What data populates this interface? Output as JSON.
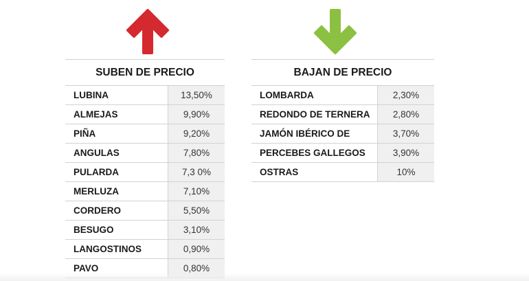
{
  "colors": {
    "up_arrow": "#d42a2f",
    "down_arrow": "#8cc043"
  },
  "icons": {
    "up": "arrow-up-icon",
    "down": "arrow-down-icon"
  },
  "rising": {
    "title": "SUBEN DE PRECIO",
    "rows": [
      {
        "name": "LUBINA",
        "value": "13,50%"
      },
      {
        "name": "ALMEJAS",
        "value": "9,90%"
      },
      {
        "name": "PIÑA",
        "value": "9,20%"
      },
      {
        "name": "ANGULAS",
        "value": "7,80%"
      },
      {
        "name": "PULARDA",
        "value": "7,3 0%"
      },
      {
        "name": "MERLUZA",
        "value": "7,10%"
      },
      {
        "name": "CORDERO",
        "value": "5,50%"
      },
      {
        "name": "BESUGO",
        "value": "3,10%"
      },
      {
        "name": "LANGOSTINOS",
        "value": "0,90%"
      },
      {
        "name": "PAVO",
        "value": "0,80%"
      }
    ]
  },
  "falling": {
    "title": "BAJAN DE PRECIO",
    "rows": [
      {
        "name": "LOMBARDA",
        "value": "2,30%"
      },
      {
        "name": "REDONDO DE TERNERA",
        "value": "2,80%"
      },
      {
        "name": "JAMÓN IBÉRICO DE",
        "value": "3,70%"
      },
      {
        "name": "PERCEBES GALLEGOS",
        "value": "3,90%"
      },
      {
        "name": "OSTRAS",
        "value": "10%"
      }
    ]
  }
}
